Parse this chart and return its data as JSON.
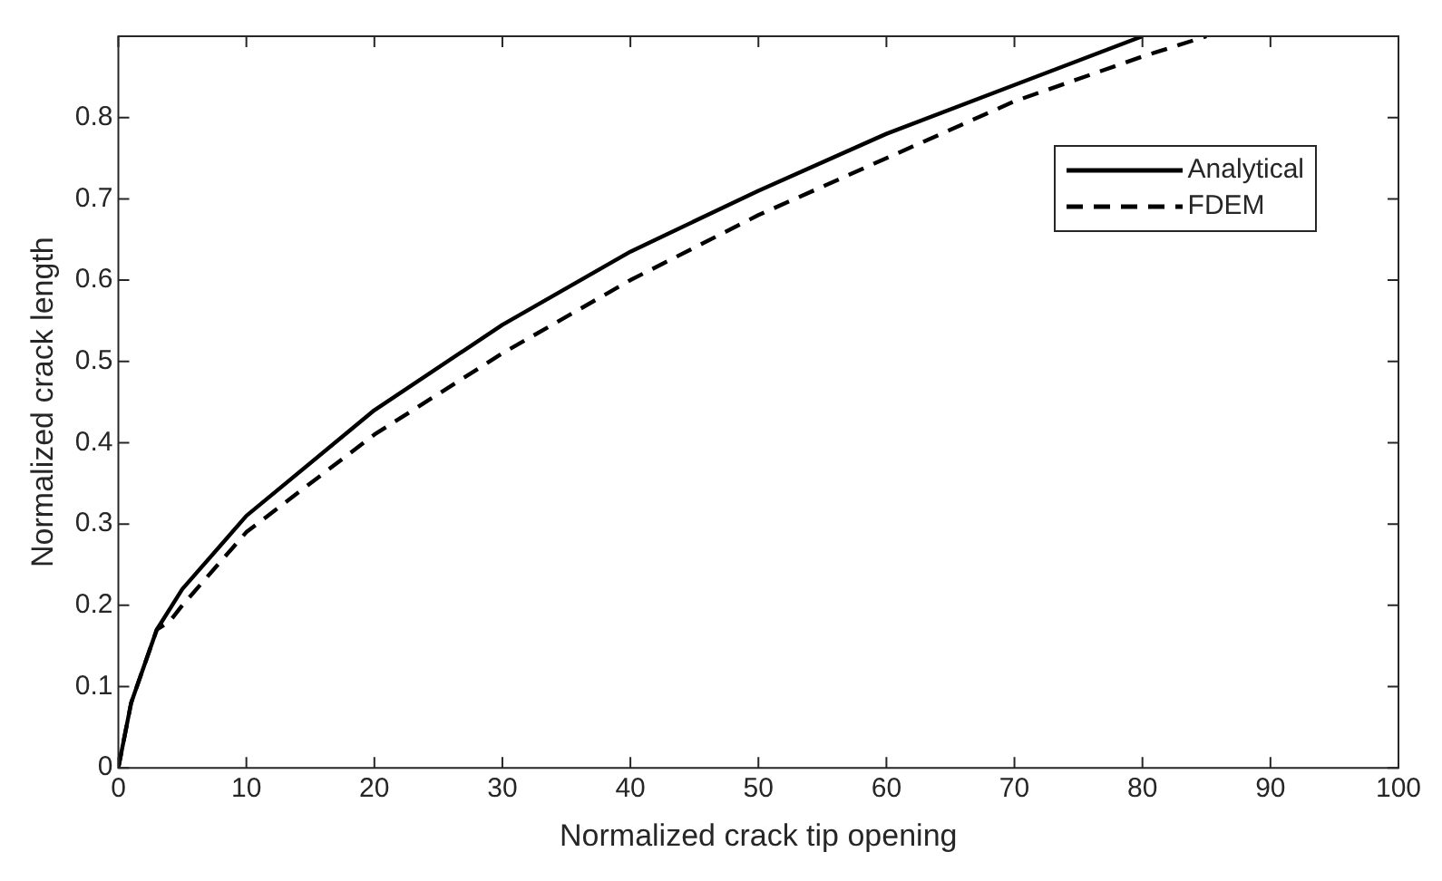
{
  "chart_data": {
    "type": "line",
    "xlabel": "Normalized crack tip opening",
    "ylabel": "Normalized crack length",
    "xlim": [
      0,
      100
    ],
    "xticks": [
      0,
      10,
      20,
      30,
      40,
      50,
      60,
      70,
      80,
      90,
      100
    ],
    "ylim": [
      0,
      0.9
    ],
    "yticks": [
      0,
      0.1,
      0.2,
      0.3,
      0.4,
      0.5,
      0.6,
      0.7,
      0.8
    ],
    "legend": "top right",
    "grid": false,
    "marker": "none",
    "series": [
      {
        "name": "Analytical",
        "color": "#000000",
        "line_style": "solid",
        "x": [
          0,
          1,
          3,
          5,
          10,
          20,
          30,
          40,
          50,
          60,
          70,
          80
        ],
        "values": [
          0,
          0.08,
          0.17,
          0.22,
          0.31,
          0.44,
          0.545,
          0.635,
          0.71,
          0.78,
          0.84,
          0.9
        ]
      },
      {
        "name": "FDEM",
        "color": "#000000",
        "line_style": "dashed",
        "x": [
          0,
          1,
          3,
          4,
          5,
          10,
          20,
          30,
          40,
          50,
          60,
          70,
          80,
          85
        ],
        "values": [
          0,
          0.08,
          0.17,
          0.18,
          0.2,
          0.29,
          0.41,
          0.51,
          0.6,
          0.68,
          0.75,
          0.82,
          0.875,
          0.9
        ]
      }
    ]
  }
}
